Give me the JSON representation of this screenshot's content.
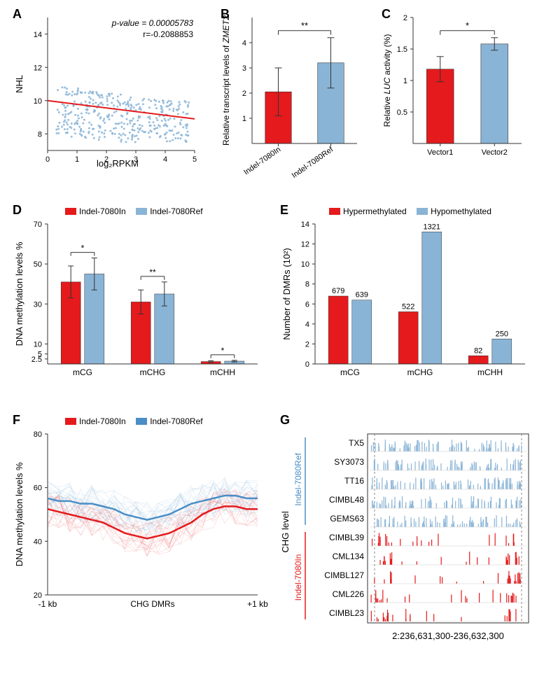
{
  "colors": {
    "red": "#e41a1c",
    "blue": "#8ab4d6",
    "blue_dark": "#4a8ec6",
    "axis": "#333333",
    "text": "#000000",
    "bg": "#ffffff"
  },
  "panelA": {
    "label": "A",
    "x_label": "log₂RPKM",
    "y_label": "NHL",
    "stats_p": "p-value = 0.00005783",
    "stats_r": "r=-0.2088853",
    "xlim": [
      0,
      5
    ],
    "ylim": [
      7,
      15
    ],
    "xticks": [
      0,
      1,
      2,
      3,
      4,
      5
    ],
    "yticks": [
      8,
      10,
      12,
      14
    ],
    "line": {
      "x0": 0,
      "y0": 10,
      "x1": 5,
      "y1": 8.9
    },
    "point_color": "#8ab4d6",
    "line_color": "#e41a1c",
    "points_seed_n": 400
  },
  "panelB": {
    "label": "B",
    "y_label": "Relative transcript levels of ZMET2",
    "categories": [
      "Indel-7080In",
      "Indel-7080Ref"
    ],
    "values": [
      2.05,
      3.2
    ],
    "errors": [
      0.95,
      1.0
    ],
    "ylim": [
      0,
      5
    ],
    "yticks": [
      1,
      2,
      3,
      4
    ],
    "sig": "**",
    "colors": [
      "#e41a1c",
      "#8ab4d6"
    ]
  },
  "panelC": {
    "label": "C",
    "y_label": "Relative LUC activity (%)",
    "categories": [
      "Vector1",
      "Vector2"
    ],
    "values": [
      1.18,
      1.58
    ],
    "errors": [
      0.2,
      0.1
    ],
    "ylim": [
      0,
      2.0
    ],
    "yticks": [
      0.5,
      1.0,
      1.5,
      2.0
    ],
    "sig": "*",
    "colors": [
      "#e41a1c",
      "#8ab4d6"
    ]
  },
  "panelD": {
    "label": "D",
    "legend": [
      "Indel-7080In",
      "Indel-7080Ref"
    ],
    "y_label": "DNA methylation levels %",
    "categories": [
      "mCG",
      "mCHG",
      "mCHH"
    ],
    "in_values": [
      41,
      31,
      1.2
    ],
    "ref_values": [
      45,
      35,
      1.4
    ],
    "in_err": [
      8,
      6,
      0.4
    ],
    "ref_err": [
      8,
      6,
      0.4
    ],
    "sigs": [
      "*",
      "**",
      "*"
    ],
    "ylim": [
      0,
      70
    ],
    "yticks": [
      2.5,
      5,
      10,
      30,
      50,
      70
    ],
    "colors": [
      "#e41a1c",
      "#8ab4d6"
    ]
  },
  "panelE": {
    "label": "E",
    "legend": [
      "Hypermethylated",
      "Hypomethylated"
    ],
    "y_label": "Number of DMRs (10²)",
    "categories": [
      "mCG",
      "mCHG",
      "mCHH"
    ],
    "hyper": [
      6.79,
      5.22,
      0.82
    ],
    "hypo": [
      6.39,
      13.21,
      2.5
    ],
    "value_labels_hyper": [
      "679",
      "522",
      "82"
    ],
    "value_labels_hypo": [
      "639",
      "1321",
      "250"
    ],
    "ylim": [
      0,
      14
    ],
    "yticks": [
      0,
      2,
      4,
      6,
      8,
      10,
      12,
      14
    ],
    "colors": [
      "#e41a1c",
      "#8ab4d6"
    ]
  },
  "panelF": {
    "label": "F",
    "legend": [
      "Indel-7080In",
      "Indel-7080Ref"
    ],
    "y_label": "DNA methylation levels %",
    "x_label": "CHG DMRs",
    "x_ticks": [
      "-1 kb",
      "CHG DMRs",
      "+1 kb"
    ],
    "ylim": [
      20,
      80
    ],
    "yticks": [
      20,
      40,
      60,
      80
    ],
    "n_faint_lines": 20,
    "bold_in_y": [
      52,
      51,
      50,
      49,
      48,
      47,
      45,
      43,
      42,
      41,
      42,
      43,
      45,
      47,
      50,
      52,
      53,
      53,
      52,
      52
    ],
    "bold_ref_y": [
      56,
      55,
      55,
      54,
      54,
      53,
      52,
      50,
      49,
      48,
      49,
      50,
      52,
      54,
      55,
      56,
      57,
      57,
      56,
      56
    ],
    "colors": {
      "in": "#e41a1c",
      "ref": "#4a8ec6"
    }
  },
  "panelG": {
    "label": "G",
    "left_group_top": "Indel-7080Ref",
    "left_group_bottom": "Indel-7080In",
    "chg_label": "CHG level",
    "samples_ref": [
      "TX5",
      "SY3073",
      "TT16",
      "CIMBL48",
      "GEMS63"
    ],
    "samples_in": [
      "CIMBL39",
      "CML134",
      "CIMBL127",
      "CML226",
      "CIMBL23"
    ],
    "coord": "2:236,631,300-236,632,300",
    "colors": {
      "ref": "#8ab4d6",
      "in": "#e41a1c"
    }
  }
}
